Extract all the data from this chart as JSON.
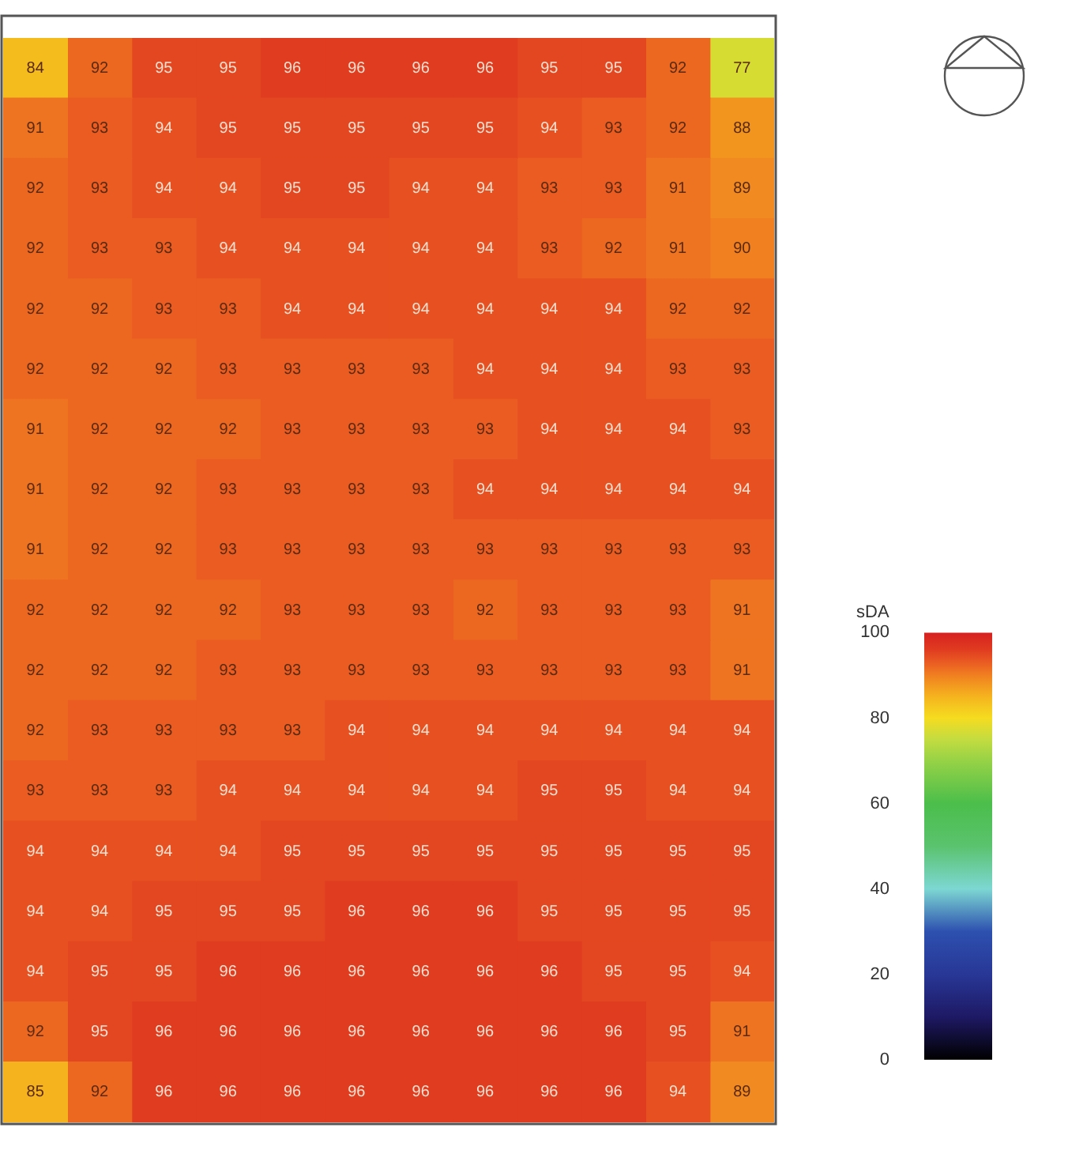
{
  "chart_data": {
    "type": "heatmap",
    "data_labels": true,
    "clabel": "sDA",
    "clim": [
      0,
      100
    ],
    "cticks": [
      0,
      20,
      40,
      60,
      80,
      100
    ],
    "categories": [
      null,
      null,
      null,
      null,
      null,
      null,
      null,
      null,
      null,
      null,
      null,
      null
    ],
    "y_categories": [
      null,
      null,
      null,
      null,
      null,
      null,
      null,
      null,
      null,
      null,
      null,
      null,
      null,
      null,
      null,
      null,
      null,
      null
    ],
    "cells": [
      [
        84,
        92,
        95,
        95,
        96,
        96,
        96,
        96,
        95,
        95,
        92,
        77
      ],
      [
        91,
        93,
        94,
        95,
        95,
        95,
        95,
        95,
        94,
        93,
        92,
        88
      ],
      [
        92,
        93,
        94,
        94,
        95,
        95,
        94,
        94,
        93,
        93,
        91,
        89
      ],
      [
        92,
        93,
        93,
        94,
        94,
        94,
        94,
        94,
        93,
        92,
        91,
        90
      ],
      [
        92,
        92,
        93,
        93,
        94,
        94,
        94,
        94,
        94,
        94,
        92,
        92
      ],
      [
        92,
        92,
        92,
        93,
        93,
        93,
        93,
        94,
        94,
        94,
        93,
        93
      ],
      [
        91,
        92,
        92,
        92,
        93,
        93,
        93,
        93,
        94,
        94,
        94,
        93
      ],
      [
        91,
        92,
        92,
        93,
        93,
        93,
        93,
        94,
        94,
        94,
        94,
        94
      ],
      [
        91,
        92,
        92,
        93,
        93,
        93,
        93,
        93,
        93,
        93,
        93,
        93
      ],
      [
        92,
        92,
        92,
        92,
        93,
        93,
        93,
        92,
        93,
        93,
        93,
        91
      ],
      [
        92,
        92,
        92,
        93,
        93,
        93,
        93,
        93,
        93,
        93,
        93,
        91
      ],
      [
        92,
        93,
        93,
        93,
        93,
        94,
        94,
        94,
        94,
        94,
        94,
        94
      ],
      [
        93,
        93,
        93,
        94,
        94,
        94,
        94,
        94,
        95,
        95,
        94,
        94
      ],
      [
        94,
        94,
        94,
        94,
        95,
        95,
        95,
        95,
        95,
        95,
        95,
        95
      ],
      [
        94,
        94,
        95,
        95,
        95,
        96,
        96,
        96,
        95,
        95,
        95,
        95
      ],
      [
        94,
        95,
        95,
        96,
        96,
        96,
        96,
        96,
        96,
        95,
        95,
        94
      ],
      [
        92,
        95,
        96,
        96,
        96,
        96,
        96,
        96,
        96,
        96,
        95,
        91
      ],
      [
        85,
        92,
        96,
        96,
        96,
        96,
        96,
        96,
        96,
        96,
        94,
        89
      ]
    ]
  }
}
